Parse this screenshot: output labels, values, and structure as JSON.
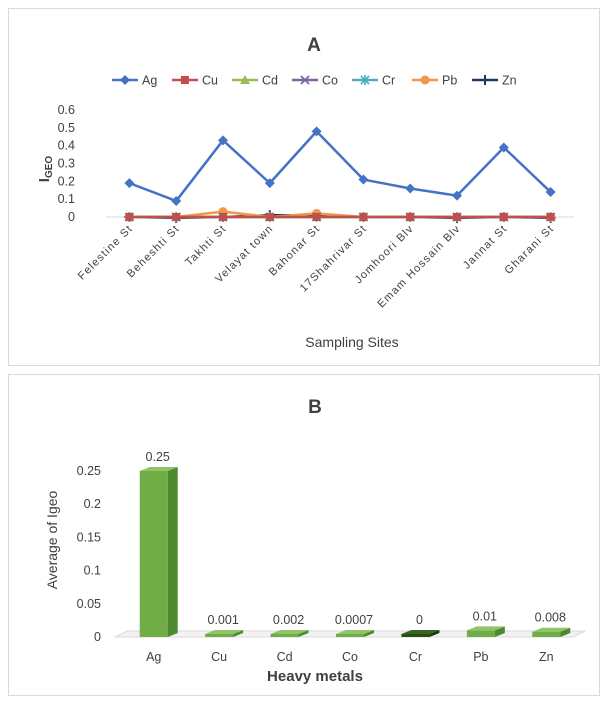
{
  "chart_data": [
    {
      "type": "line",
      "title": "A",
      "xlabel": "Sampling Sites",
      "ylabel": "IGEO",
      "ylabel_main": "I",
      "ylabel_sub": "GEO",
      "ylim": [
        0,
        0.6
      ],
      "yticks": [
        "0",
        "0.1",
        "0.2",
        "0.3",
        "0.4",
        "0.5",
        "0.6"
      ],
      "legend_position": "top",
      "grid": false,
      "categories": [
        "Felestine St",
        "Beheshti St",
        "Takhti St",
        "Velayat town",
        "Bahonar St",
        "17Shahrivar St",
        "Jomhoori Blv",
        "Emam Hossain Blv",
        "Jannat St",
        "Gharani St"
      ],
      "series": [
        {
          "name": "Ag",
          "color": "#4472c4",
          "marker": "diamond",
          "values": [
            0.19,
            0.09,
            0.43,
            0.19,
            0.48,
            0.21,
            0.16,
            0.12,
            0.39,
            0.14
          ]
        },
        {
          "name": "Cu",
          "color": "#c0504d",
          "marker": "square",
          "values": [
            0,
            0,
            0,
            0,
            0,
            0,
            0,
            0,
            0,
            0
          ]
        },
        {
          "name": "Cd",
          "color": "#9bbb59",
          "marker": "triangle",
          "values": [
            0,
            0,
            0,
            0,
            0,
            0,
            0,
            0,
            0,
            0
          ]
        },
        {
          "name": "Co",
          "color": "#8064a2",
          "marker": "x",
          "values": [
            0,
            0,
            0,
            0,
            0,
            0,
            0,
            0,
            0,
            0
          ]
        },
        {
          "name": "Cr",
          "color": "#4bacc6",
          "marker": "star",
          "values": [
            0,
            0,
            0,
            0,
            0,
            0,
            0,
            0,
            0,
            0
          ]
        },
        {
          "name": "Pb",
          "color": "#f79646",
          "marker": "circle",
          "values": [
            0,
            0,
            0.03,
            0,
            0.02,
            0,
            0,
            0,
            0,
            0
          ]
        },
        {
          "name": "Zn",
          "color": "#1f3864",
          "marker": "plus",
          "values": [
            0,
            -0.005,
            0,
            0.01,
            0.01,
            0,
            0,
            -0.005,
            0,
            -0.005
          ]
        }
      ]
    },
    {
      "type": "bar",
      "title": "B",
      "xlabel": "Heavy metals",
      "ylabel": "Average of Igeo",
      "ylim": [
        0,
        0.25
      ],
      "yticks": [
        "0",
        "0.05",
        "0.1",
        "0.15",
        "0.2",
        "0.25"
      ],
      "grid": false,
      "bar_color": "#70ad47",
      "categories": [
        "Ag",
        "Cu",
        "Cd",
        "Co",
        "Cr",
        "Pb",
        "Zn"
      ],
      "values": [
        0.25,
        0.001,
        0.002,
        0.0007,
        0,
        0.01,
        0.008
      ],
      "data_labels": [
        "0.25",
        "0.001",
        "0.002",
        "0.0007",
        "0",
        "0.01",
        "0.008"
      ]
    }
  ]
}
